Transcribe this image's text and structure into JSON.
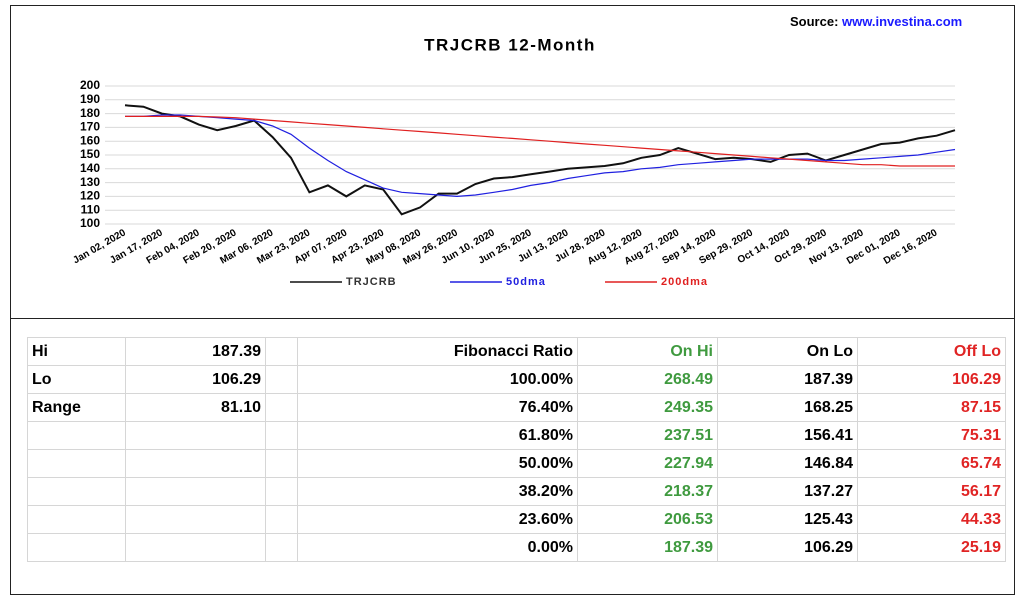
{
  "source": {
    "label": "Source:",
    "url": "www.investina.com"
  },
  "chart_data": {
    "type": "line",
    "title": "TRJCRB 12-Month",
    "categories": [
      "Jan 02, 2020",
      null,
      "Jan 17, 2020",
      null,
      "Feb 04, 2020",
      null,
      "Feb 20, 2020",
      null,
      "Mar 06, 2020",
      null,
      "Mar 23, 2020",
      null,
      "Apr 07, 2020",
      null,
      "Apr 23, 2020",
      null,
      "May 08, 2020",
      null,
      "May 26, 2020",
      null,
      "Jun 10, 2020",
      null,
      "Jun 25, 2020",
      null,
      "Jul 13, 2020",
      null,
      "Jul 28, 2020",
      null,
      "Aug 12, 2020",
      null,
      "Aug 27, 2020",
      null,
      "Sep 14, 2020",
      null,
      "Sep 29, 2020",
      null,
      "Oct 14, 2020",
      null,
      "Oct 29, 2020",
      null,
      "Nov 13, 2020",
      null,
      "Dec 01, 2020",
      null,
      "Dec 16, 2020",
      null
    ],
    "series": [
      {
        "name": "TRJCRB",
        "color": "#111111",
        "values": [
          186,
          185,
          180,
          178,
          172,
          168,
          171,
          175,
          163,
          148,
          123,
          128,
          120,
          128,
          125,
          107,
          112,
          122,
          122,
          129,
          133,
          134,
          136,
          138,
          140,
          141,
          142,
          144,
          148,
          150,
          155,
          151,
          147,
          148,
          147,
          145,
          150,
          151,
          146,
          150,
          154,
          158,
          159,
          162,
          164,
          168
        ]
      },
      {
        "name": "50dma",
        "color": "#2020e0",
        "values": [
          178,
          178,
          179,
          179,
          178,
          177,
          176,
          175,
          171,
          165,
          155,
          146,
          138,
          132,
          126,
          123,
          122,
          121,
          120,
          121,
          123,
          125,
          128,
          130,
          133,
          135,
          137,
          138,
          140,
          141,
          143,
          144,
          145,
          146,
          147,
          147,
          147,
          147,
          146,
          146,
          147,
          148,
          149,
          150,
          152,
          154
        ]
      },
      {
        "name": "200dma",
        "color": "#e02020",
        "values": [
          178,
          178,
          178,
          178,
          178,
          177.5,
          177,
          176,
          175,
          174,
          173,
          172,
          171,
          170,
          169,
          168,
          167,
          166,
          165,
          164,
          163,
          162,
          161,
          160,
          159,
          158,
          157,
          156,
          155,
          154,
          153,
          152,
          151,
          150,
          149,
          148,
          147,
          146,
          145,
          144,
          143,
          143,
          142,
          142,
          142,
          142
        ]
      }
    ],
    "ylim": [
      100,
      200
    ],
    "yticks": [
      100,
      110,
      120,
      130,
      140,
      150,
      160,
      170,
      180,
      190,
      200
    ],
    "grid": true,
    "legend": "bottom"
  },
  "table": {
    "stats": [
      [
        "Hi",
        "187.39"
      ],
      [
        "Lo",
        "106.29"
      ],
      [
        "Range",
        "81.10"
      ]
    ],
    "fib_header": [
      "Fibonacci  Ratio",
      "On Hi",
      "On Lo",
      "Off Lo"
    ],
    "fib_rows": [
      [
        "100.00%",
        "268.49",
        "187.39",
        "106.29"
      ],
      [
        "76.40%",
        "249.35",
        "168.25",
        "87.15"
      ],
      [
        "61.80%",
        "237.51",
        "156.41",
        "75.31"
      ],
      [
        "50.00%",
        "227.94",
        "146.84",
        "65.74"
      ],
      [
        "38.20%",
        "218.37",
        "137.27",
        "56.17"
      ],
      [
        "23.60%",
        "206.53",
        "125.43",
        "44.33"
      ],
      [
        "0.00%",
        "187.39",
        "106.29",
        "25.19"
      ]
    ]
  }
}
